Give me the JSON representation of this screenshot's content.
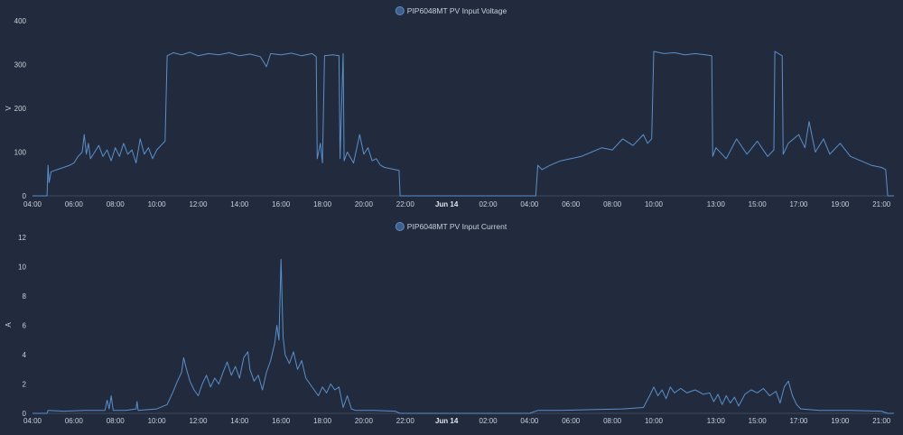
{
  "chart_data": [
    {
      "type": "line",
      "legend": "PIP6048MT PV Input Voltage",
      "legend_position": "top-center",
      "ylabel": "V",
      "ylim": [
        0,
        400
      ],
      "yticks": [
        0,
        100,
        200,
        300,
        400
      ],
      "xlim": [
        4.0,
        45.6
      ],
      "xticks": [
        {
          "label": "04:00",
          "x": 4
        },
        {
          "label": "06:00",
          "x": 6
        },
        {
          "label": "08:00",
          "x": 8
        },
        {
          "label": "10:00",
          "x": 10
        },
        {
          "label": "12:00",
          "x": 12
        },
        {
          "label": "14:00",
          "x": 14
        },
        {
          "label": "16:00",
          "x": 16
        },
        {
          "label": "18:00",
          "x": 18
        },
        {
          "label": "20:00",
          "x": 20
        },
        {
          "label": "22:00",
          "x": 22
        },
        {
          "label": "Jun 14",
          "x": 24,
          "bold": true
        },
        {
          "label": "02:00",
          "x": 26
        },
        {
          "label": "04:00",
          "x": 28
        },
        {
          "label": "06:00",
          "x": 30
        },
        {
          "label": "08:00",
          "x": 32
        },
        {
          "label": "10:00",
          "x": 34
        },
        {
          "label": "13:00",
          "x": 37
        },
        {
          "label": "15:00",
          "x": 39
        },
        {
          "label": "17:00",
          "x": 41
        },
        {
          "label": "19:00",
          "x": 43
        },
        {
          "label": "21:00",
          "x": 45
        }
      ],
      "grid": false,
      "color": "#5a8fc9",
      "points": [
        [
          4.0,
          0
        ],
        [
          4.7,
          0
        ],
        [
          4.75,
          70
        ],
        [
          4.8,
          30
        ],
        [
          4.9,
          55
        ],
        [
          5.2,
          60
        ],
        [
          5.5,
          65
        ],
        [
          5.8,
          70
        ],
        [
          6.0,
          75
        ],
        [
          6.2,
          90
        ],
        [
          6.4,
          100
        ],
        [
          6.5,
          140
        ],
        [
          6.6,
          95
        ],
        [
          6.7,
          120
        ],
        [
          6.8,
          85
        ],
        [
          7.0,
          100
        ],
        [
          7.2,
          115
        ],
        [
          7.4,
          90
        ],
        [
          7.6,
          105
        ],
        [
          7.8,
          80
        ],
        [
          8.0,
          110
        ],
        [
          8.2,
          90
        ],
        [
          8.4,
          120
        ],
        [
          8.6,
          95
        ],
        [
          8.8,
          105
        ],
        [
          9.0,
          75
        ],
        [
          9.2,
          130
        ],
        [
          9.4,
          95
        ],
        [
          9.6,
          110
        ],
        [
          9.8,
          85
        ],
        [
          10.0,
          105
        ],
        [
          10.2,
          115
        ],
        [
          10.4,
          125
        ],
        [
          10.5,
          320
        ],
        [
          10.8,
          327
        ],
        [
          11.2,
          322
        ],
        [
          11.6,
          328
        ],
        [
          12.0,
          320
        ],
        [
          12.5,
          325
        ],
        [
          13.0,
          322
        ],
        [
          13.5,
          327
        ],
        [
          14.0,
          320
        ],
        [
          14.5,
          324
        ],
        [
          15.0,
          318
        ],
        [
          15.3,
          295
        ],
        [
          15.5,
          325
        ],
        [
          16.0,
          322
        ],
        [
          16.5,
          326
        ],
        [
          17.0,
          320
        ],
        [
          17.5,
          325
        ],
        [
          17.7,
          318
        ],
        [
          17.75,
          85
        ],
        [
          17.9,
          120
        ],
        [
          18.0,
          75
        ],
        [
          18.1,
          320
        ],
        [
          18.5,
          322
        ],
        [
          18.8,
          320
        ],
        [
          18.85,
          85
        ],
        [
          19.0,
          325
        ],
        [
          19.05,
          80
        ],
        [
          19.2,
          100
        ],
        [
          19.5,
          75
        ],
        [
          19.8,
          140
        ],
        [
          20.0,
          95
        ],
        [
          20.2,
          110
        ],
        [
          20.4,
          80
        ],
        [
          20.6,
          85
        ],
        [
          20.8,
          70
        ],
        [
          21.0,
          65
        ],
        [
          21.5,
          60
        ],
        [
          21.7,
          58
        ],
        [
          21.75,
          0
        ],
        [
          28.0,
          0
        ],
        [
          28.3,
          0
        ],
        [
          28.4,
          70
        ],
        [
          28.6,
          60
        ],
        [
          29.0,
          70
        ],
        [
          29.5,
          80
        ],
        [
          30.0,
          85
        ],
        [
          30.5,
          90
        ],
        [
          31.0,
          100
        ],
        [
          31.5,
          110
        ],
        [
          32.0,
          105
        ],
        [
          32.5,
          130
        ],
        [
          33.0,
          115
        ],
        [
          33.5,
          140
        ],
        [
          33.7,
          120
        ],
        [
          33.9,
          130
        ],
        [
          34.0,
          330
        ],
        [
          34.5,
          325
        ],
        [
          35.0,
          327
        ],
        [
          35.5,
          322
        ],
        [
          36.0,
          325
        ],
        [
          36.5,
          322
        ],
        [
          36.8,
          320
        ],
        [
          36.85,
          90
        ],
        [
          37.0,
          110
        ],
        [
          37.5,
          85
        ],
        [
          38.0,
          130
        ],
        [
          38.5,
          95
        ],
        [
          39.0,
          125
        ],
        [
          39.5,
          90
        ],
        [
          39.8,
          105
        ],
        [
          39.85,
          330
        ],
        [
          40.2,
          320
        ],
        [
          40.25,
          95
        ],
        [
          40.5,
          120
        ],
        [
          41.0,
          140
        ],
        [
          41.3,
          110
        ],
        [
          41.5,
          170
        ],
        [
          41.8,
          100
        ],
        [
          42.2,
          130
        ],
        [
          42.5,
          95
        ],
        [
          43.0,
          120
        ],
        [
          43.5,
          90
        ],
        [
          44.0,
          80
        ],
        [
          44.5,
          70
        ],
        [
          45.0,
          65
        ],
        [
          45.2,
          60
        ],
        [
          45.3,
          0
        ],
        [
          45.6,
          0
        ]
      ]
    },
    {
      "type": "line",
      "legend": "PIP6048MT PV Input Current",
      "legend_position": "top-center",
      "ylabel": "A",
      "ylim": [
        0,
        12
      ],
      "yticks": [
        0,
        2,
        4,
        6,
        8,
        10,
        12
      ],
      "xlim": [
        4.0,
        45.6
      ],
      "xticks": [
        {
          "label": "04:00",
          "x": 4
        },
        {
          "label": "06:00",
          "x": 6
        },
        {
          "label": "08:00",
          "x": 8
        },
        {
          "label": "10:00",
          "x": 10
        },
        {
          "label": "12:00",
          "x": 12
        },
        {
          "label": "14:00",
          "x": 14
        },
        {
          "label": "16:00",
          "x": 16
        },
        {
          "label": "18:00",
          "x": 18
        },
        {
          "label": "20:00",
          "x": 20
        },
        {
          "label": "22:00",
          "x": 22
        },
        {
          "label": "Jun 14",
          "x": 24,
          "bold": true
        },
        {
          "label": "02:00",
          "x": 26
        },
        {
          "label": "04:00",
          "x": 28
        },
        {
          "label": "06:00",
          "x": 30
        },
        {
          "label": "08:00",
          "x": 32
        },
        {
          "label": "10:00",
          "x": 34
        },
        {
          "label": "13:00",
          "x": 37
        },
        {
          "label": "15:00",
          "x": 39
        },
        {
          "label": "17:00",
          "x": 41
        },
        {
          "label": "19:00",
          "x": 43
        },
        {
          "label": "21:00",
          "x": 45
        }
      ],
      "grid": false,
      "color": "#5a8fc9",
      "points": [
        [
          4.0,
          0
        ],
        [
          4.7,
          0
        ],
        [
          4.75,
          0.2
        ],
        [
          5.5,
          0.15
        ],
        [
          6.5,
          0.2
        ],
        [
          7.5,
          0.2
        ],
        [
          7.6,
          0.9
        ],
        [
          7.7,
          0.3
        ],
        [
          7.8,
          1.2
        ],
        [
          7.9,
          0.2
        ],
        [
          8.5,
          0.2
        ],
        [
          9.0,
          0.3
        ],
        [
          9.05,
          0.8
        ],
        [
          9.1,
          0.2
        ],
        [
          10.0,
          0.3
        ],
        [
          10.5,
          0.6
        ],
        [
          10.8,
          1.5
        ],
        [
          11.0,
          2.2
        ],
        [
          11.2,
          2.8
        ],
        [
          11.3,
          3.8
        ],
        [
          11.4,
          3.2
        ],
        [
          11.6,
          2.2
        ],
        [
          11.8,
          1.6
        ],
        [
          12.0,
          1.2
        ],
        [
          12.2,
          2.0
        ],
        [
          12.4,
          2.6
        ],
        [
          12.6,
          1.8
        ],
        [
          12.8,
          2.4
        ],
        [
          13.0,
          2.0
        ],
        [
          13.2,
          2.8
        ],
        [
          13.4,
          3.5
        ],
        [
          13.6,
          2.6
        ],
        [
          13.8,
          3.2
        ],
        [
          14.0,
          2.4
        ],
        [
          14.2,
          3.8
        ],
        [
          14.4,
          4.2
        ],
        [
          14.5,
          3.0
        ],
        [
          14.7,
          2.2
        ],
        [
          14.9,
          2.6
        ],
        [
          15.1,
          1.6
        ],
        [
          15.3,
          2.8
        ],
        [
          15.5,
          3.6
        ],
        [
          15.7,
          4.8
        ],
        [
          15.8,
          6.0
        ],
        [
          15.9,
          5.0
        ],
        [
          16.0,
          10.5
        ],
        [
          16.1,
          5.2
        ],
        [
          16.2,
          4.0
        ],
        [
          16.4,
          3.4
        ],
        [
          16.6,
          4.2
        ],
        [
          16.8,
          3.0
        ],
        [
          17.0,
          3.6
        ],
        [
          17.2,
          2.4
        ],
        [
          17.4,
          2.0
        ],
        [
          17.6,
          1.6
        ],
        [
          17.8,
          1.2
        ],
        [
          18.0,
          1.8
        ],
        [
          18.2,
          1.4
        ],
        [
          18.4,
          2.0
        ],
        [
          18.6,
          1.6
        ],
        [
          18.8,
          1.8
        ],
        [
          19.0,
          0.4
        ],
        [
          19.2,
          1.2
        ],
        [
          19.4,
          0.3
        ],
        [
          19.6,
          0.2
        ],
        [
          20.5,
          0.2
        ],
        [
          21.5,
          0.15
        ],
        [
          21.75,
          0
        ],
        [
          28.0,
          0
        ],
        [
          28.4,
          0.2
        ],
        [
          29.5,
          0.2
        ],
        [
          31.0,
          0.25
        ],
        [
          32.5,
          0.3
        ],
        [
          33.5,
          0.4
        ],
        [
          33.8,
          1.2
        ],
        [
          34.0,
          1.8
        ],
        [
          34.2,
          1.2
        ],
        [
          34.4,
          1.6
        ],
        [
          34.6,
          1.0
        ],
        [
          34.8,
          1.8
        ],
        [
          35.0,
          1.4
        ],
        [
          35.3,
          1.7
        ],
        [
          35.6,
          1.4
        ],
        [
          36.0,
          1.6
        ],
        [
          36.4,
          1.3
        ],
        [
          36.7,
          1.4
        ],
        [
          36.9,
          0.8
        ],
        [
          37.1,
          1.3
        ],
        [
          37.3,
          0.6
        ],
        [
          37.5,
          1.2
        ],
        [
          37.7,
          0.7
        ],
        [
          37.9,
          1.1
        ],
        [
          38.1,
          0.5
        ],
        [
          38.4,
          1.3
        ],
        [
          38.7,
          1.6
        ],
        [
          39.0,
          1.4
        ],
        [
          39.3,
          1.7
        ],
        [
          39.6,
          1.2
        ],
        [
          39.9,
          1.5
        ],
        [
          40.1,
          0.7
        ],
        [
          40.3,
          1.8
        ],
        [
          40.5,
          2.2
        ],
        [
          40.7,
          1.2
        ],
        [
          40.9,
          0.6
        ],
        [
          41.1,
          0.3
        ],
        [
          42.0,
          0.2
        ],
        [
          43.5,
          0.2
        ],
        [
          45.0,
          0.15
        ],
        [
          45.3,
          0
        ],
        [
          45.6,
          0
        ]
      ]
    }
  ]
}
